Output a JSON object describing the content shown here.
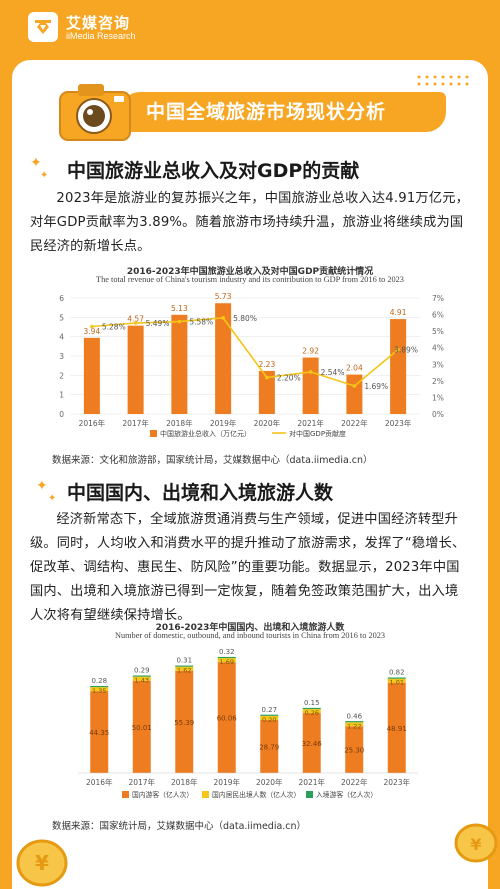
{
  "brand": {
    "name_cn": "艾媒咨询",
    "name_en": "iiMedia Research"
  },
  "banner": {
    "title": "中国全域旅游市场现状分析"
  },
  "section1": {
    "title": "中国旅游业总收入及对GDP的贡献",
    "paragraph": "2023年是旅游业的复苏振兴之年，中国旅游业总收入达4.91万亿元，对年GDP贡献率为3.89%。随着旅游市场持续升温，旅游业将继续成为国民经济的新增长点。",
    "chart_title_cn": "2016-2023年中国旅游业总收入及对中国GDP贡献统计情况",
    "chart_title_en": "The total revenue of China's tourism industry and its contribution to GDP from 2016 to 2023",
    "source": "数据来源：文化和旅游部，国家统计局，艾媒数据中心（data.iimedia.cn）"
  },
  "section2": {
    "title": "中国国内、出境和入境旅游人数",
    "paragraph": "经济新常态下，全域旅游贯通消费与生产领域，促进中国经济转型升级。同时，人均收入和消费水平的提升推动了旅游需求，发挥了“稳增长、促改革、调结构、惠民生、防风险”的重要功能。数据显示，2023年中国国内、出境和入境旅游已得到一定恢复，随着免签政策范围扩大，出入境人次将有望继续保持增长。",
    "chart_title_cn": "2016-2023年中国国内、出境和入境旅游人数",
    "chart_title_en": "Number of domestic, outbound, and inbound tourists in China from 2016 to 2023",
    "source": "数据来源：国家统计局，艾媒数据中心（data.iimedia.cn）"
  },
  "colors": {
    "accent": "#f6a623",
    "bar": "#ee7d22",
    "line": "#f5c518",
    "inbound": "#2e9e5b"
  },
  "chart_data": [
    {
      "type": "bar",
      "title": "2016-2023年中国旅游业总收入及对中国GDP贡献统计情况",
      "categories": [
        "2016年",
        "2017年",
        "2018年",
        "2019年",
        "2020年",
        "2021年",
        "2022年",
        "2023年"
      ],
      "series": [
        {
          "name": "中国旅游业总收入（万亿元）",
          "type": "bar",
          "values": [
            3.94,
            4.57,
            5.13,
            5.73,
            2.23,
            2.92,
            2.04,
            4.91
          ]
        },
        {
          "name": "对中国GDP贡献度",
          "type": "line",
          "values": [
            5.28,
            5.49,
            5.58,
            5.8,
            2.2,
            2.54,
            1.69,
            3.89
          ],
          "labels": [
            "5.28%",
            "5.49%",
            "5.58%",
            "5.80%",
            "2.20%",
            "2.54%",
            "1.69%",
            "3.89%"
          ]
        }
      ],
      "ylim": [
        0,
        6
      ],
      "yticks": [
        "0",
        "1",
        "2",
        "3",
        "4",
        "5",
        "6"
      ],
      "y2lim": [
        0,
        7
      ],
      "y2ticks": [
        "0%",
        "1%",
        "2%",
        "3%",
        "4%",
        "5%",
        "6%",
        "7%"
      ],
      "legend": "bottom"
    },
    {
      "type": "bar",
      "title": "2016-2023年中国国内、出境和入境旅游人数",
      "categories": [
        "2016年",
        "2017年",
        "2018年",
        "2019年",
        "2020年",
        "2021年",
        "2022年",
        "2023年"
      ],
      "series": [
        {
          "name": "国内游客（亿人次）",
          "values": [
            44.35,
            50.01,
            55.39,
            60.06,
            28.79,
            32.46,
            25.3,
            48.91
          ],
          "labels": [
            "44.35",
            "50.01",
            "55.39",
            "60.06",
            "28.79",
            "32.46",
            "25.30",
            "48.91"
          ]
        },
        {
          "name": "国内居民出境人数（亿人次）",
          "values": [
            1.35,
            1.43,
            1.62,
            1.69,
            0.2,
            0.26,
            1.22,
            1.01
          ],
          "labels": [
            "1.35",
            "1.43",
            "1.62",
            "1.69",
            "0.20",
            "0.26",
            "1.22",
            "1.01"
          ]
        },
        {
          "name": "入境游客（亿人次）",
          "values": [
            0.28,
            0.29,
            0.31,
            0.32,
            0.27,
            0.15,
            0.46,
            0.82
          ],
          "labels": [
            "0.28",
            "0.29",
            "0.31",
            "0.32",
            "0.27",
            "0.15",
            "0.46",
            "0.82"
          ]
        }
      ],
      "stacked": true,
      "legend": "bottom"
    }
  ]
}
